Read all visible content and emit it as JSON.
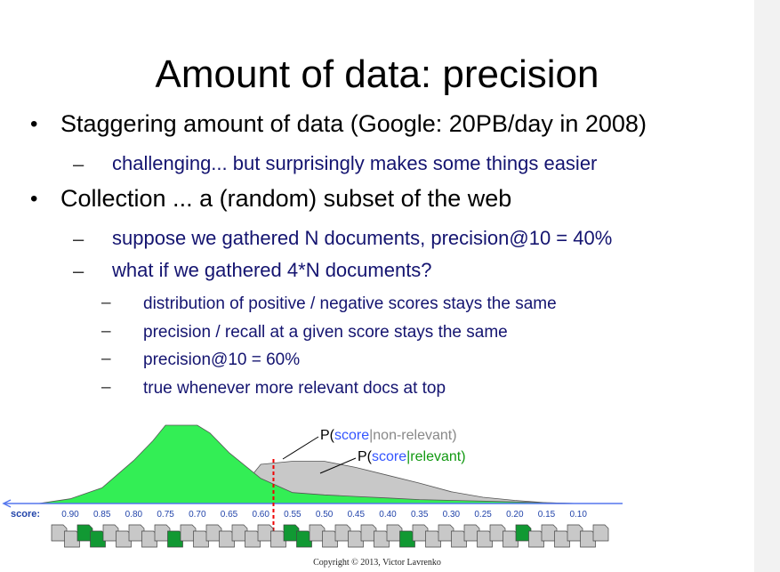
{
  "slide": {
    "title": "Amount of data: precision",
    "bullets": [
      {
        "text": "Staggering amount of data (Google: 20PB/day in 2008)",
        "subs": [
          {
            "text": "challenging... but surprisingly makes some things easier"
          }
        ]
      },
      {
        "text": "Collection ... a (random) subset of the web",
        "subs": [
          {
            "text": "suppose we gathered N documents, precision@10 = 40%"
          },
          {
            "text": "what if we gathered 4*N documents?",
            "subs": [
              {
                "text": "distribution of positive / negative scores stays the same"
              },
              {
                "text": "precision / recall at a given score stays the same"
              },
              {
                "text": "precision@10 = 60%"
              },
              {
                "text": "true whenever more relevant docs at top"
              }
            ]
          }
        ]
      }
    ],
    "bullet_glyph": "•",
    "dash_glyph": "–",
    "copyright": "Copyright © 2013, Victor Lavrenko"
  },
  "chart_data": {
    "type": "area",
    "x_axis_label": "score:",
    "x_ticks": [
      0.9,
      0.85,
      0.8,
      0.75,
      0.7,
      0.65,
      0.6,
      0.55,
      0.5,
      0.45,
      0.4,
      0.35,
      0.3,
      0.25,
      0.2,
      0.15,
      0.1
    ],
    "x_reversed": true,
    "threshold": 0.58,
    "series": [
      {
        "name": "P(score|relevant)",
        "color": "#33ee55",
        "x": [
          0.95,
          0.9,
          0.85,
          0.8,
          0.77,
          0.75,
          0.7,
          0.68,
          0.65,
          0.6,
          0.55,
          0.5,
          0.45,
          0.4,
          0.35,
          0.3,
          0.2,
          0.1
        ],
        "y": [
          0.0,
          0.06,
          0.2,
          0.55,
          0.8,
          1.0,
          1.0,
          0.9,
          0.65,
          0.32,
          0.14,
          0.11,
          0.09,
          0.07,
          0.05,
          0.04,
          0.02,
          0.0
        ]
      },
      {
        "name": "P(score|non-relevant)",
        "color": "#c8c8c8",
        "x": [
          0.62,
          0.6,
          0.55,
          0.5,
          0.45,
          0.4,
          0.35,
          0.3,
          0.25,
          0.2,
          0.15,
          0.1
        ],
        "y": [
          0.3,
          0.5,
          0.54,
          0.54,
          0.46,
          0.36,
          0.26,
          0.15,
          0.08,
          0.04,
          0.01,
          0.0
        ]
      }
    ],
    "annotations": [
      {
        "parts": [
          {
            "text": "P(",
            "color": "#000000"
          },
          {
            "text": "score",
            "color": "#3355ff"
          },
          {
            "text": "|non-relevant)",
            "color": "#888888"
          }
        ]
      },
      {
        "parts": [
          {
            "text": "P(",
            "color": "#000000"
          },
          {
            "text": "score",
            "color": "#3355ff"
          },
          {
            "text": "|relevant)",
            "color": "#119911"
          }
        ]
      }
    ],
    "documents": {
      "pattern": [
        "g",
        "g",
        "d",
        "d",
        "g",
        "g",
        "g",
        "g",
        "g",
        "d",
        "g",
        "g",
        "g",
        "g",
        "g",
        "g",
        "g",
        "g",
        "d",
        "d",
        "g",
        "g",
        "g",
        "g",
        "g",
        "g",
        "g",
        "d",
        "g",
        "g",
        "g",
        "g",
        "g",
        "g",
        "g",
        "g",
        "d",
        "g",
        "g",
        "g",
        "g",
        "g",
        "g"
      ],
      "colors": {
        "g": "#c8c8c8",
        "d": "#119933"
      }
    }
  }
}
